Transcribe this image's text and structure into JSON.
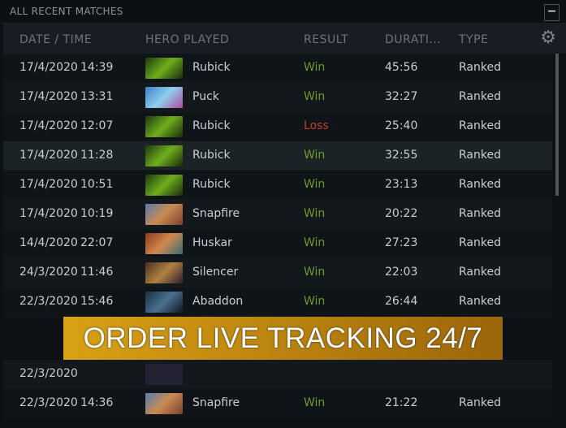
{
  "title": "ALL RECENT MATCHES",
  "minimize_label": "−",
  "columns": [
    "DATE / TIME",
    "HERO PLAYED",
    "RESULT",
    "DURATI...",
    "TYPE"
  ],
  "banner": "ORDER LIVE TRACKING 24/7",
  "colors": {
    "win": "#6e9a2f",
    "loss": "#c23c2a",
    "banner": "#d9a114"
  },
  "matches": [
    {
      "date": "17/4/2020",
      "time": "14:39",
      "hero": "Rubick",
      "result": "Win",
      "duration": "45:56",
      "type": "Ranked"
    },
    {
      "date": "17/4/2020",
      "time": "13:31",
      "hero": "Puck",
      "result": "Win",
      "duration": "32:27",
      "type": "Ranked"
    },
    {
      "date": "17/4/2020",
      "time": "12:07",
      "hero": "Rubick",
      "result": "Loss",
      "duration": "25:40",
      "type": "Ranked"
    },
    {
      "date": "17/4/2020",
      "time": "11:28",
      "hero": "Rubick",
      "result": "Win",
      "duration": "32:55",
      "type": "Ranked"
    },
    {
      "date": "17/4/2020",
      "time": "10:51",
      "hero": "Rubick",
      "result": "Win",
      "duration": "23:13",
      "type": "Ranked"
    },
    {
      "date": "17/4/2020",
      "time": "10:19",
      "hero": "Snapfire",
      "result": "Win",
      "duration": "20:22",
      "type": "Ranked"
    },
    {
      "date": "14/4/2020",
      "time": "22:07",
      "hero": "Huskar",
      "result": "Win",
      "duration": "27:23",
      "type": "Ranked"
    },
    {
      "date": "24/3/2020",
      "time": "11:46",
      "hero": "Silencer",
      "result": "Win",
      "duration": "22:03",
      "type": "Ranked"
    },
    {
      "date": "22/3/2020",
      "time": "15:46",
      "hero": "Abaddon",
      "result": "Win",
      "duration": "26:44",
      "type": "Ranked"
    },
    {
      "date": "22/3/2020",
      "time": "",
      "hero": "",
      "result": "",
      "duration": "",
      "type": ""
    },
    {
      "date": "22/3/2020",
      "time": "14:36",
      "hero": "Snapfire",
      "result": "Win",
      "duration": "21:22",
      "type": "Ranked"
    }
  ]
}
